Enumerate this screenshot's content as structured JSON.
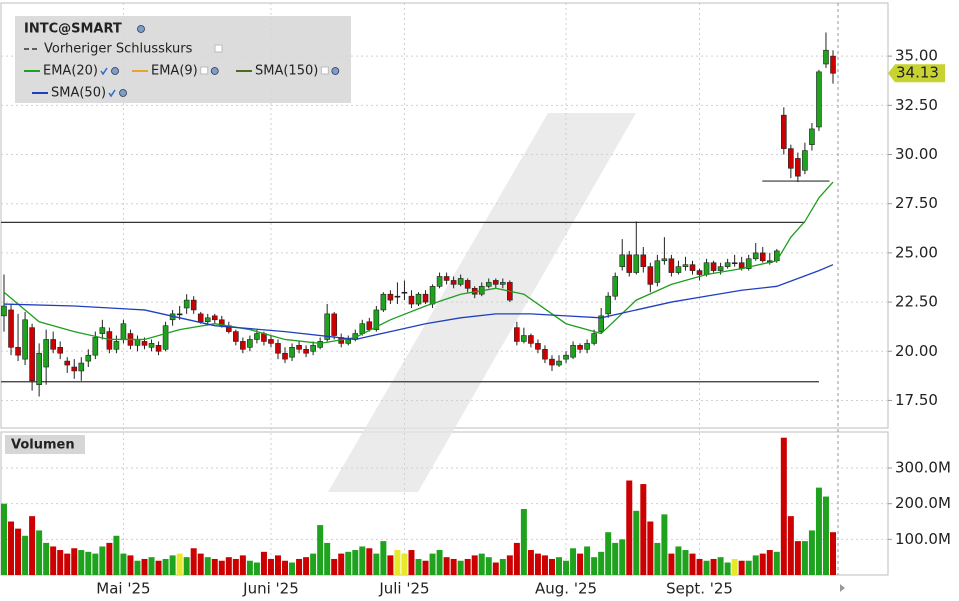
{
  "chart_data": {
    "type": "candlestick",
    "symbol": "INTC@SMART",
    "reference_line": {
      "name": "Vorheriger Schlusskurs",
      "color": "#333333"
    },
    "volume_label": "Volumen",
    "up_color": "#1fa31f",
    "down_color": "#cc0000",
    "flat_color": "#e8e82a",
    "categories": [
      null,
      null,
      null,
      null,
      null,
      null,
      null,
      null,
      null,
      null,
      null,
      null,
      null,
      null,
      null,
      null,
      null,
      "Mai '25",
      null,
      null,
      null,
      null,
      null,
      null,
      null,
      null,
      null,
      null,
      null,
      null,
      null,
      null,
      null,
      null,
      null,
      null,
      null,
      null,
      "Juni '25",
      null,
      null,
      null,
      null,
      null,
      null,
      null,
      null,
      null,
      null,
      null,
      null,
      null,
      null,
      null,
      null,
      null,
      null,
      "Juli '25",
      null,
      null,
      null,
      null,
      null,
      null,
      null,
      null,
      null,
      null,
      null,
      null,
      null,
      null,
      null,
      null,
      null,
      null,
      null,
      null,
      null,
      null,
      "Aug. '25",
      null,
      null,
      null,
      null,
      null,
      null,
      null,
      null,
      null,
      null,
      null,
      null,
      null,
      null,
      null,
      null,
      null,
      null,
      "Sept. '25",
      null,
      null,
      null,
      null,
      null,
      null,
      null,
      null,
      null,
      null,
      null,
      null,
      null,
      null,
      null,
      null,
      null,
      null,
      null
    ],
    "ohlc": [
      [
        21.8,
        23.9,
        21.0,
        22.3
      ],
      [
        22.1,
        22.4,
        19.8,
        20.2
      ],
      [
        20.2,
        21.9,
        19.5,
        19.8
      ],
      [
        19.6,
        22.0,
        19.3,
        21.6
      ],
      [
        21.2,
        21.4,
        18.0,
        18.5
      ],
      [
        18.3,
        20.4,
        17.7,
        19.9
      ],
      [
        19.2,
        21.1,
        18.3,
        20.6
      ],
      [
        20.6,
        21.0,
        19.9,
        20.1
      ],
      [
        20.2,
        20.5,
        19.6,
        19.9
      ],
      [
        19.5,
        19.7,
        18.9,
        19.3
      ],
      [
        19.2,
        19.6,
        18.6,
        19.0
      ],
      [
        19.0,
        19.7,
        18.5,
        19.4
      ],
      [
        19.5,
        20.1,
        19.2,
        19.8
      ],
      [
        19.8,
        21.0,
        19.6,
        20.7
      ],
      [
        20.9,
        21.6,
        20.6,
        21.2
      ],
      [
        21.0,
        21.2,
        19.9,
        20.1
      ],
      [
        20.1,
        20.8,
        19.9,
        20.5
      ],
      [
        20.6,
        21.6,
        20.4,
        21.4
      ],
      [
        20.9,
        21.1,
        20.1,
        20.3
      ],
      [
        20.3,
        20.8,
        20.0,
        20.6
      ],
      [
        20.5,
        20.7,
        20.1,
        20.3
      ],
      [
        20.2,
        20.6,
        20.0,
        20.4
      ],
      [
        20.3,
        20.5,
        19.8,
        20.0
      ],
      [
        20.1,
        21.5,
        20.0,
        21.3
      ],
      [
        21.6,
        22.1,
        21.3,
        21.9
      ],
      [
        21.9,
        22.3,
        21.6,
        21.9
      ],
      [
        22.2,
        22.9,
        21.9,
        22.6
      ],
      [
        22.6,
        22.8,
        21.9,
        22.1
      ],
      [
        21.9,
        22.0,
        21.4,
        21.5
      ],
      [
        21.5,
        21.9,
        21.3,
        21.7
      ],
      [
        21.8,
        21.9,
        21.4,
        21.6
      ],
      [
        21.6,
        21.8,
        21.2,
        21.3
      ],
      [
        21.3,
        21.5,
        20.9,
        21.0
      ],
      [
        21.0,
        21.1,
        20.3,
        20.5
      ],
      [
        20.5,
        20.7,
        19.9,
        20.1
      ],
      [
        20.2,
        20.8,
        20.0,
        20.6
      ],
      [
        20.6,
        21.1,
        20.4,
        20.9
      ],
      [
        20.9,
        21.0,
        20.3,
        20.5
      ],
      [
        20.6,
        20.8,
        20.2,
        20.4
      ],
      [
        20.4,
        20.6,
        19.6,
        19.9
      ],
      [
        19.9,
        20.2,
        19.4,
        19.6
      ],
      [
        19.7,
        20.4,
        19.5,
        20.2
      ],
      [
        20.3,
        20.5,
        19.9,
        20.1
      ],
      [
        20.1,
        20.3,
        19.7,
        19.9
      ],
      [
        20.0,
        20.5,
        19.8,
        20.3
      ],
      [
        20.2,
        20.7,
        20.1,
        20.5
      ],
      [
        20.6,
        22.4,
        20.5,
        21.9
      ],
      [
        21.9,
        22.0,
        20.6,
        20.8
      ],
      [
        20.7,
        20.9,
        20.2,
        20.4
      ],
      [
        20.4,
        20.8,
        20.3,
        20.6
      ],
      [
        20.6,
        21.1,
        20.5,
        20.9
      ],
      [
        20.9,
        21.6,
        20.8,
        21.4
      ],
      [
        21.5,
        21.7,
        21.0,
        21.1
      ],
      [
        21.1,
        22.3,
        21.0,
        22.1
      ],
      [
        22.1,
        23.0,
        22.0,
        22.9
      ],
      [
        22.9,
        23.1,
        22.4,
        22.6
      ],
      [
        22.8,
        23.5,
        22.4,
        22.8
      ],
      [
        23.0,
        23.6,
        22.6,
        23.0
      ],
      [
        22.8,
        23.1,
        22.2,
        22.4
      ],
      [
        22.4,
        23.0,
        22.3,
        22.9
      ],
      [
        22.9,
        23.1,
        22.4,
        22.5
      ],
      [
        22.4,
        23.4,
        22.2,
        23.3
      ],
      [
        23.3,
        24.0,
        23.2,
        23.8
      ],
      [
        23.8,
        24.0,
        23.4,
        23.6
      ],
      [
        23.6,
        23.8,
        23.2,
        23.4
      ],
      [
        23.4,
        23.9,
        23.3,
        23.7
      ],
      [
        23.6,
        23.7,
        23.0,
        23.2
      ],
      [
        23.2,
        23.3,
        22.7,
        22.9
      ],
      [
        22.9,
        23.5,
        22.8,
        23.3
      ],
      [
        23.3,
        23.7,
        23.2,
        23.5
      ],
      [
        23.6,
        23.7,
        23.2,
        23.4
      ],
      [
        23.4,
        23.7,
        23.2,
        23.5
      ],
      [
        23.5,
        23.6,
        22.5,
        22.6
      ],
      [
        21.2,
        21.5,
        20.3,
        20.5
      ],
      [
        20.5,
        21.2,
        20.4,
        20.8
      ],
      [
        20.8,
        20.9,
        20.2,
        20.4
      ],
      [
        20.4,
        20.6,
        19.9,
        20.1
      ],
      [
        20.1,
        20.3,
        19.4,
        19.6
      ],
      [
        19.6,
        19.8,
        19.0,
        19.3
      ],
      [
        19.3,
        19.8,
        19.2,
        19.5
      ],
      [
        19.6,
        20.0,
        19.4,
        19.8
      ],
      [
        19.7,
        20.5,
        19.6,
        20.3
      ],
      [
        20.3,
        20.4,
        19.9,
        20.1
      ],
      [
        20.1,
        20.6,
        19.9,
        20.4
      ],
      [
        20.4,
        21.1,
        20.3,
        20.9
      ],
      [
        21.0,
        22.2,
        20.9,
        21.8
      ],
      [
        21.9,
        23.0,
        21.7,
        22.8
      ],
      [
        22.8,
        24.0,
        22.6,
        23.8
      ],
      [
        24.3,
        25.7,
        24.1,
        24.9
      ],
      [
        24.9,
        25.1,
        23.8,
        24.0
      ],
      [
        24.0,
        26.6,
        23.9,
        24.9
      ],
      [
        24.9,
        25.3,
        24.0,
        24.3
      ],
      [
        24.3,
        24.5,
        23.0,
        23.4
      ],
      [
        23.5,
        24.9,
        23.3,
        24.6
      ],
      [
        24.6,
        25.8,
        24.4,
        24.7
      ],
      [
        24.7,
        24.9,
        23.8,
        24.0
      ],
      [
        24.0,
        24.6,
        23.9,
        24.3
      ],
      [
        24.3,
        24.8,
        24.1,
        24.4
      ],
      [
        24.4,
        24.6,
        23.9,
        24.1
      ],
      [
        24.1,
        24.2,
        23.6,
        23.9
      ],
      [
        23.9,
        24.7,
        23.8,
        24.5
      ],
      [
        24.5,
        24.6,
        24.0,
        24.1
      ],
      [
        24.1,
        24.5,
        23.9,
        24.3
      ],
      [
        24.3,
        24.7,
        24.2,
        24.5
      ],
      [
        24.5,
        24.9,
        24.3,
        24.5
      ],
      [
        24.5,
        24.8,
        24.1,
        24.2
      ],
      [
        24.2,
        24.9,
        24.1,
        24.7
      ],
      [
        24.7,
        25.5,
        24.6,
        25.0
      ],
      [
        25.0,
        25.3,
        24.5,
        24.6
      ],
      [
        24.6,
        25.0,
        24.4,
        24.5
      ],
      [
        24.6,
        25.2,
        24.5,
        25.1
      ],
      [
        32.0,
        32.4,
        30.0,
        30.3
      ],
      [
        30.3,
        30.5,
        28.8,
        29.3
      ],
      [
        29.8,
        30.1,
        28.6,
        28.9
      ],
      [
        29.2,
        30.6,
        29.0,
        30.2
      ],
      [
        30.5,
        31.6,
        30.2,
        31.3
      ],
      [
        31.4,
        34.3,
        31.2,
        34.2
      ],
      [
        34.6,
        36.2,
        34.4,
        35.3
      ],
      [
        35.0,
        35.3,
        33.6,
        34.13
      ]
    ],
    "volume": [
      200,
      150,
      130,
      110,
      165,
      125,
      90,
      80,
      70,
      60,
      75,
      70,
      65,
      60,
      80,
      90,
      110,
      60,
      55,
      40,
      45,
      50,
      40,
      45,
      55,
      60,
      50,
      75,
      60,
      50,
      45,
      40,
      50,
      45,
      55,
      40,
      35,
      65,
      45,
      55,
      40,
      35,
      45,
      50,
      60,
      140,
      90,
      45,
      60,
      65,
      70,
      80,
      75,
      60,
      95,
      55,
      70,
      60,
      70,
      45,
      40,
      60,
      70,
      50,
      45,
      40,
      45,
      55,
      60,
      50,
      35,
      45,
      55,
      90,
      185,
      70,
      60,
      55,
      45,
      50,
      40,
      75,
      60,
      80,
      50,
      65,
      120,
      90,
      100,
      265,
      180,
      255,
      150,
      90,
      170,
      60,
      80,
      70,
      60,
      45,
      40,
      45,
      50,
      35,
      45,
      40,
      40,
      55,
      60,
      70,
      65,
      385,
      165,
      95,
      95,
      125,
      245,
      220,
      120
    ],
    "series": [
      {
        "name": "EMA(20)",
        "color": "#1f9e1f",
        "checked": true,
        "x": [
          0,
          5,
          10,
          15,
          20,
          25,
          30,
          35,
          40,
          45,
          50,
          55,
          60,
          65,
          70,
          74,
          80,
          85,
          90,
          95,
          100,
          105,
          110,
          112,
          114,
          116,
          118
        ],
        "values": [
          23.0,
          21.5,
          21.0,
          20.6,
          20.6,
          21.1,
          21.4,
          21.1,
          20.6,
          20.4,
          20.7,
          21.6,
          22.3,
          22.9,
          23.2,
          22.9,
          21.4,
          20.9,
          22.6,
          23.4,
          23.9,
          24.2,
          24.6,
          25.8,
          26.6,
          27.8,
          28.6
        ]
      },
      {
        "name": "EMA(9)",
        "color": "#f0a030",
        "checked": false
      },
      {
        "name": "SMA(150)",
        "color": "#4b6b1e",
        "checked": false
      },
      {
        "name": "SMA(50)",
        "color": "#1f3fbf",
        "checked": true,
        "x": [
          0,
          10,
          20,
          25,
          30,
          40,
          50,
          55,
          60,
          65,
          70,
          75,
          80,
          85,
          90,
          95,
          100,
          105,
          110,
          113,
          116,
          118
        ],
        "values": [
          22.4,
          22.3,
          22.1,
          21.7,
          21.3,
          21.0,
          20.6,
          21.0,
          21.4,
          21.7,
          21.9,
          21.9,
          21.8,
          21.7,
          22.1,
          22.5,
          22.8,
          23.1,
          23.3,
          23.7,
          24.1,
          24.4
        ]
      }
    ],
    "levels": [
      {
        "value": 26.55,
        "from": 0,
        "to": 114
      },
      {
        "value": 18.45,
        "from": 0,
        "to": 116
      },
      {
        "value": 28.65,
        "from": 108.5,
        "to": 117.5
      }
    ],
    "ylim": [
      16.1,
      37.7
    ],
    "yticks": [
      {
        "value": 17.5,
        "label": "17.50"
      },
      {
        "value": 20,
        "label": "20.00"
      },
      {
        "value": 22.5,
        "label": "22.50"
      },
      {
        "value": 25,
        "label": "25.00"
      },
      {
        "value": 27.5,
        "label": "27.50"
      },
      {
        "value": 30,
        "label": "30.00"
      },
      {
        "value": 32.5,
        "label": "32.50"
      },
      {
        "value": 35,
        "label": "35.00"
      }
    ],
    "volume_ylim": [
      0,
      401
    ],
    "volume_yticks": [
      {
        "value": 100,
        "label": "100.0M"
      },
      {
        "value": 200,
        "label": "200.0M"
      },
      {
        "value": 300,
        "label": "300.0M"
      }
    ],
    "grid": true
  }
}
